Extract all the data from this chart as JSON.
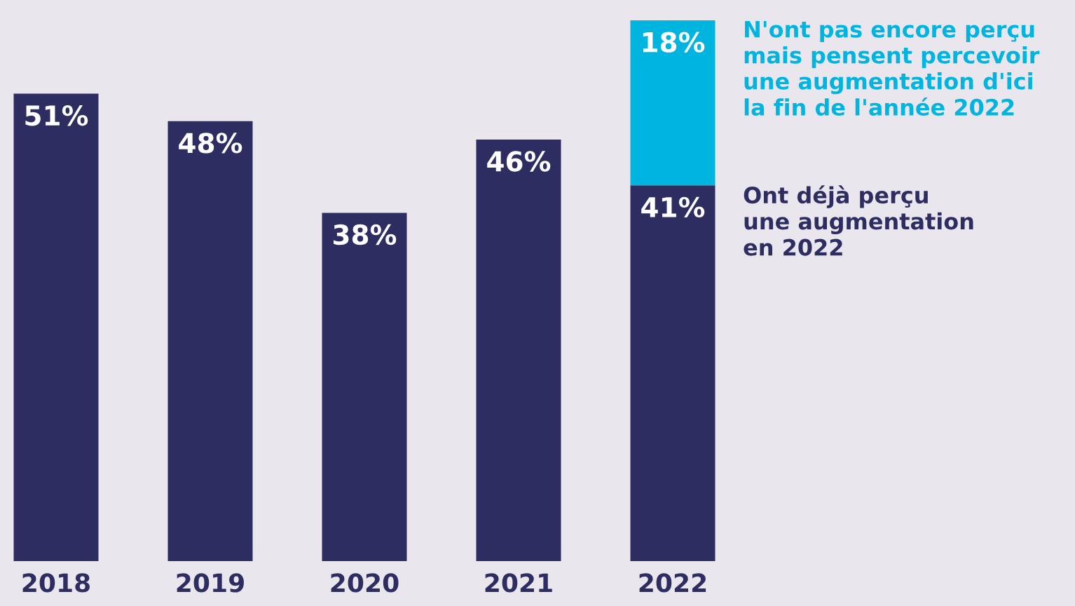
{
  "chart_data": {
    "type": "bar",
    "stacked": true,
    "categories": [
      "2018",
      "2019",
      "2020",
      "2021",
      "2022"
    ],
    "series": [
      {
        "name": "Ont déjà perçu\nune augmentation\nen 2022",
        "color": "#2e2d62",
        "values": [
          51,
          48,
          38,
          46,
          41
        ],
        "value_labels": [
          "51%",
          "48%",
          "38%",
          "46%",
          "41%"
        ]
      },
      {
        "name": "N'ont pas encore perçu\nmais pensent percevoir\nune augmentation d'ici\nla fin de l'année 2022",
        "color": "#00b4e0",
        "values": [
          null,
          null,
          null,
          null,
          18
        ],
        "value_labels": [
          null,
          null,
          null,
          null,
          "18%"
        ]
      }
    ]
  }
}
